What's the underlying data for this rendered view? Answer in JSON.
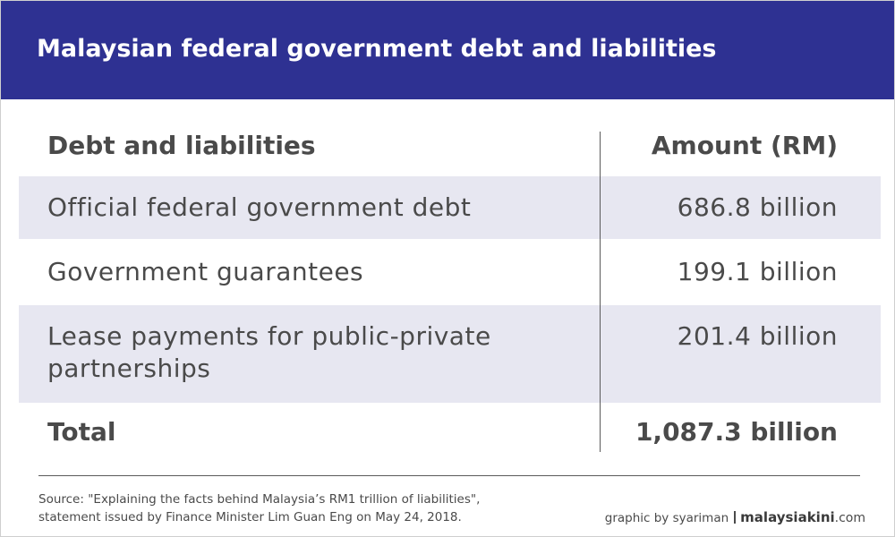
{
  "title": "Malaysian federal government debt and liabilities",
  "chart_data": {
    "type": "table",
    "columns": [
      "Debt and liabilities",
      "Amount (RM)"
    ],
    "rows": [
      {
        "item": "Official federal government debt",
        "amount": "686.8 billion"
      },
      {
        "item": "Government guarantees",
        "amount": "199.1 billion"
      },
      {
        "item": "Lease payments for public-private partnerships",
        "amount": "201.4 billion"
      }
    ],
    "total": {
      "item": "Total",
      "amount": "1,087.3 billion"
    }
  },
  "footer": {
    "source_line1": "Source: \"Explaining the facts behind Malaysia’s RM1 trillion of liabilities\",",
    "source_line2": "statement issued by Finance Minister Lim Guan Eng on May 24, 2018.",
    "credit": "graphic by syariman",
    "brand": "malaysiakini",
    "brand_suffix": ".com"
  },
  "colors": {
    "header_bg": "#2e3192",
    "row_shade": "#e7e7f1",
    "text": "#4a4a4a"
  }
}
